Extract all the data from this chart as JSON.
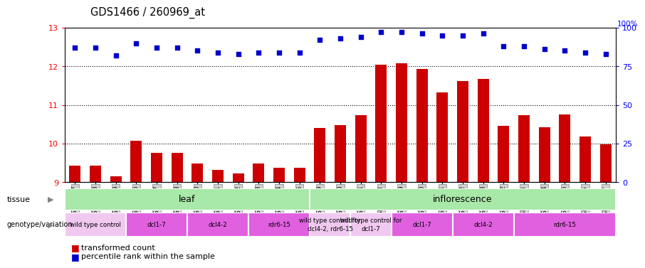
{
  "title": "GDS1466 / 260969_at",
  "samples": [
    "GSM65917",
    "GSM65918",
    "GSM65919",
    "GSM65926",
    "GSM65927",
    "GSM65928",
    "GSM65920",
    "GSM65921",
    "GSM65922",
    "GSM65923",
    "GSM65924",
    "GSM65925",
    "GSM65929",
    "GSM65930",
    "GSM65931",
    "GSM65938",
    "GSM65939",
    "GSM65940",
    "GSM65941",
    "GSM65942",
    "GSM65943",
    "GSM65932",
    "GSM65933",
    "GSM65934",
    "GSM65935",
    "GSM65936",
    "GSM65937"
  ],
  "bar_values": [
    9.42,
    9.42,
    9.15,
    10.08,
    9.75,
    9.75,
    9.48,
    9.32,
    9.23,
    9.48,
    9.38,
    9.38,
    10.4,
    10.48,
    10.73,
    12.03,
    12.08,
    11.92,
    11.33,
    11.62,
    11.68,
    10.45,
    10.73,
    10.42,
    10.75,
    10.18,
    9.98
  ],
  "percentile_values": [
    87,
    87,
    82,
    90,
    87,
    87,
    85,
    84,
    83,
    84,
    84,
    84,
    92,
    93,
    94,
    97,
    97,
    96,
    95,
    95,
    96,
    88,
    88,
    86,
    85,
    84,
    83
  ],
  "ylim_left": [
    9,
    13
  ],
  "ylim_right": [
    0,
    100
  ],
  "yticks_left": [
    9,
    10,
    11,
    12,
    13
  ],
  "yticks_right": [
    0,
    25,
    50,
    75,
    100
  ],
  "bar_color": "#cc0000",
  "dot_color": "#0000cc",
  "tick_bg_color": "#d0d0d0",
  "tissue_groups": [
    {
      "label": "leaf",
      "start": 0,
      "end": 12,
      "color": "#a8e8a8"
    },
    {
      "label": "inflorescence",
      "start": 12,
      "end": 27,
      "color": "#a8e8a8"
    }
  ],
  "genotype_groups": [
    {
      "label": "wild type control",
      "start": 0,
      "end": 3,
      "color": "#f0c8f0"
    },
    {
      "label": "dcl1-7",
      "start": 3,
      "end": 6,
      "color": "#e060e0"
    },
    {
      "label": "dcl4-2",
      "start": 6,
      "end": 9,
      "color": "#e060e0"
    },
    {
      "label": "rdr6-15",
      "start": 9,
      "end": 12,
      "color": "#e060e0"
    },
    {
      "label": "wild type control for\ndcl4-2, rdr6-15",
      "start": 12,
      "end": 14,
      "color": "#f0c8f0"
    },
    {
      "label": "wild type control for\ndcl1-7",
      "start": 14,
      "end": 16,
      "color": "#f0c8f0"
    },
    {
      "label": "dcl1-7",
      "start": 16,
      "end": 19,
      "color": "#e060e0"
    },
    {
      "label": "dcl4-2",
      "start": 19,
      "end": 22,
      "color": "#e060e0"
    },
    {
      "label": "rdr6-15",
      "start": 22,
      "end": 27,
      "color": "#e060e0"
    }
  ]
}
